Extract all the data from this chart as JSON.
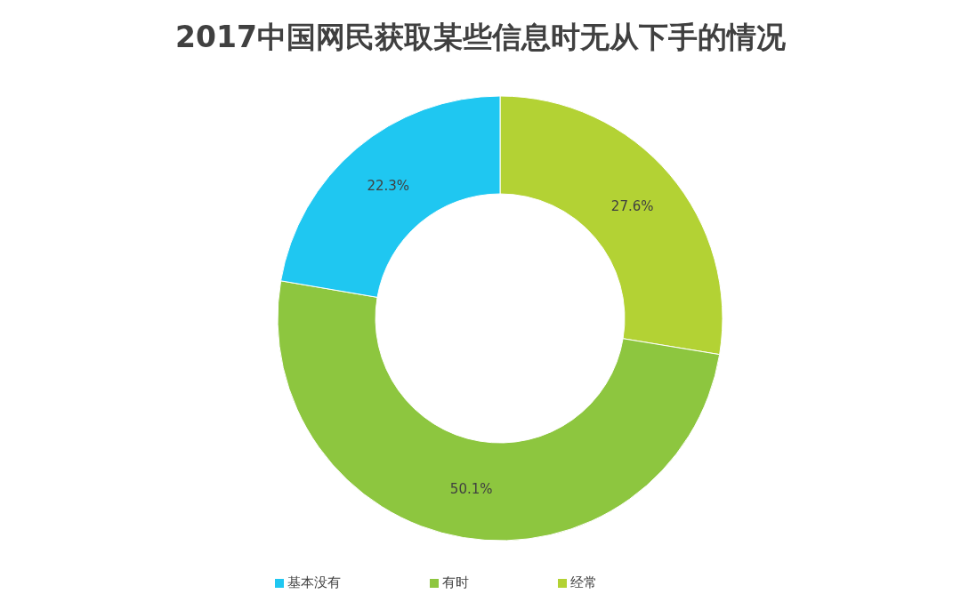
{
  "chart_data": {
    "type": "donut",
    "title": "2017中国网民获取某些信息时无从下手的情况",
    "categories": [
      "经常",
      "有时",
      "基本没有"
    ],
    "values": [
      27.6,
      50.1,
      22.3
    ],
    "colors": [
      "#b3d234",
      "#8dc63f",
      "#1fc7f1"
    ],
    "value_labels": [
      "27.6%",
      "50.1%",
      "22.3%"
    ],
    "legend": "bottom"
  }
}
